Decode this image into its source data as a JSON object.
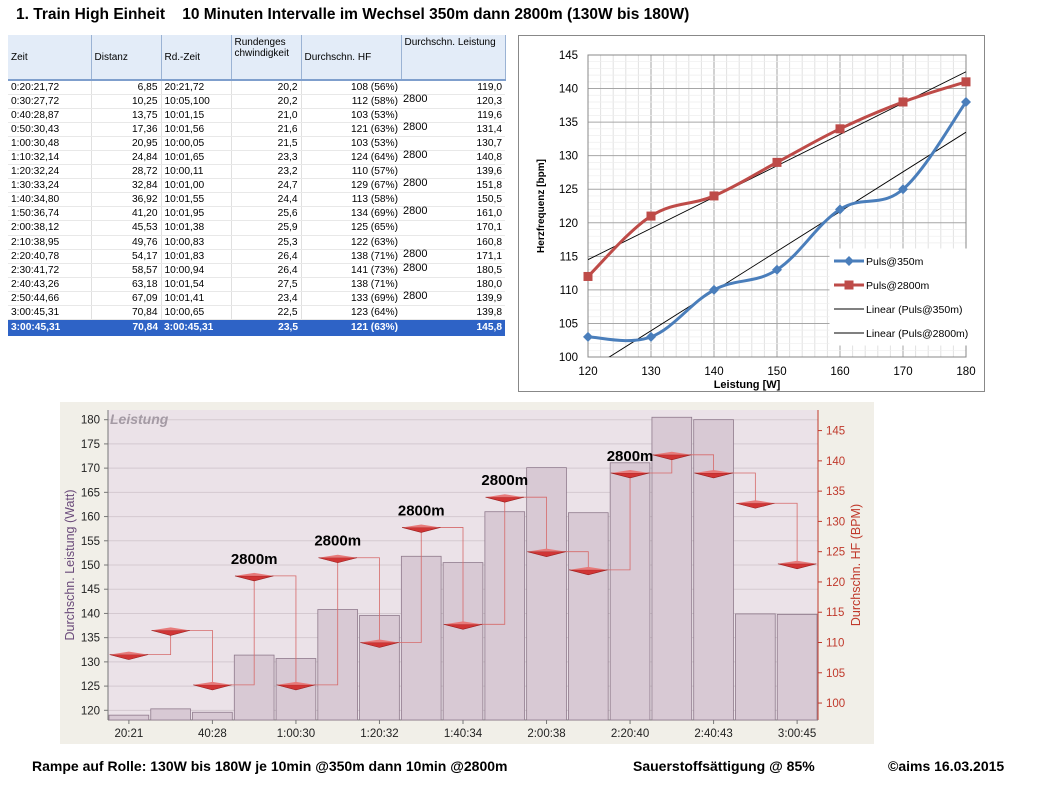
{
  "title": "1. Train High Einheit    10 Minuten Intervalle im Wechsel 350m dann 2800m (130W bis 180W)",
  "table": {
    "headers": [
      "Zeit",
      "Distanz",
      "Rd.-Zeit",
      "Rundenges chwindigkeit",
      "Durchschn. HF",
      "Durchschn. Leistung"
    ],
    "rows": [
      [
        "0:20:21,72",
        "6,85",
        "20:21,72",
        "20,2",
        "108 (56%)",
        "",
        "119,0"
      ],
      [
        "0:30:27,72",
        "10,25",
        "10:05,100",
        "20,2",
        "112 (58%)",
        "2800",
        "120,3"
      ],
      [
        "0:40:28,87",
        "13,75",
        "10:01,15",
        "21,0",
        "103 (53%)",
        "",
        "119,6"
      ],
      [
        "0:50:30,43",
        "17,36",
        "10:01,56",
        "21,6",
        "121 (63%)",
        "2800",
        "131,4"
      ],
      [
        "1:00:30,48",
        "20,95",
        "10:00,05",
        "21,5",
        "103 (53%)",
        "",
        "130,7"
      ],
      [
        "1:10:32,14",
        "24,84",
        "10:01,65",
        "23,3",
        "124 (64%)",
        "2800",
        "140,8"
      ],
      [
        "1:20:32,24",
        "28,72",
        "10:00,11",
        "23,2",
        "110 (57%)",
        "",
        "139,6"
      ],
      [
        "1:30:33,24",
        "32,84",
        "10:01,00",
        "24,7",
        "129 (67%)",
        "2800",
        "151,8"
      ],
      [
        "1:40:34,80",
        "36,92",
        "10:01,55",
        "24,4",
        "113 (58%)",
        "",
        "150,5"
      ],
      [
        "1:50:36,74",
        "41,20",
        "10:01,95",
        "25,6",
        "134 (69%)",
        "2800",
        "161,0"
      ],
      [
        "2:00:38,12",
        "45,53",
        "10:01,38",
        "25,9",
        "125 (65%)",
        "",
        "170,1"
      ],
      [
        "2:10:38,95",
        "49,76",
        "10:00,83",
        "25,3",
        "122 (63%)",
        "",
        "160,8"
      ],
      [
        "2:20:40,78",
        "54,17",
        "10:01,83",
        "26,4",
        "138 (71%)",
        "2800",
        "171,1"
      ],
      [
        "2:30:41,72",
        "58,57",
        "10:00,94",
        "26,4",
        "141 (73%)",
        "2800",
        "180,5"
      ],
      [
        "2:40:43,26",
        "63,18",
        "10:01,54",
        "27,5",
        "138 (71%)",
        "",
        "180,0"
      ],
      [
        "2:50:44,66",
        "67,09",
        "10:01,41",
        "23,4",
        "133 (69%)",
        "2800",
        "139,9"
      ],
      [
        "3:00:45,31",
        "70,84",
        "10:00,65",
        "22,5",
        "123 (64%)",
        "",
        "139,8"
      ]
    ],
    "total": [
      "3:00:45,31",
      "70,84",
      "3:00:45,31",
      "23,5",
      "121 (63%)",
      "145,8"
    ]
  },
  "footer": {
    "left": "Rampe auf Rolle: 130W bis 180W je 10min @350m dann 10min @2800m",
    "middle": "Sauerstoffsättigung @ 85%",
    "right": "©aims 16.03.2015"
  },
  "chart_data": [
    {
      "type": "line",
      "xlabel": "Leistung [W]",
      "ylabel": "Herzfrequenz [bpm]",
      "xlim": [
        120,
        180
      ],
      "ylim": [
        100,
        145
      ],
      "x_ticks": [
        120,
        130,
        140,
        150,
        160,
        170,
        180
      ],
      "y_ticks": [
        100,
        105,
        110,
        115,
        120,
        125,
        130,
        135,
        140,
        145
      ],
      "grid": true,
      "legend_position": "right",
      "series": [
        {
          "name": "Puls@350m",
          "color": "#4a7ebb",
          "marker": "diamond",
          "x": [
            120,
            130,
            140,
            150,
            160,
            170,
            180
          ],
          "y": [
            103,
            103,
            110,
            113,
            122,
            125,
            138
          ]
        },
        {
          "name": "Puls@2800m",
          "color": "#be4b48",
          "marker": "square",
          "x": [
            120,
            130,
            140,
            150,
            160,
            170,
            180
          ],
          "y": [
            112,
            121,
            124,
            129,
            134,
            138,
            141
          ]
        },
        {
          "name": "Linear (Puls@350m)",
          "color": "#000000",
          "trend": true,
          "x": [
            120,
            180
          ],
          "y": [
            98,
            133.5
          ]
        },
        {
          "name": "Linear (Puls@2800m)",
          "color": "#000000",
          "trend": true,
          "x": [
            120,
            180
          ],
          "y": [
            114.5,
            142.5
          ]
        }
      ]
    },
    {
      "type": "bar",
      "title": "Leistung",
      "ylabel": "Durchschn. Leistung (Watt)",
      "y2label": "Durchschn. HF (BPM)",
      "ylim": [
        118,
        182
      ],
      "y_ticks": [
        120,
        125,
        130,
        135,
        140,
        145,
        150,
        155,
        160,
        165,
        170,
        175,
        180
      ],
      "y2lim": [
        97.2,
        148.4
      ],
      "y2_ticks": [
        100,
        105,
        110,
        115,
        120,
        125,
        130,
        135,
        140,
        145
      ],
      "x_tick_labels": [
        "20:21",
        "40:28",
        "1:00:30",
        "1:20:32",
        "1:40:34",
        "2:00:38",
        "2:20:40",
        "2:40:43",
        "3:00:45"
      ],
      "bar_values": [
        119.0,
        120.3,
        119.6,
        131.4,
        130.7,
        140.8,
        139.6,
        151.8,
        150.5,
        161.0,
        170.1,
        160.8,
        171.1,
        180.5,
        180.0,
        139.9,
        139.8
      ],
      "hf_values": [
        108,
        112,
        103,
        121,
        103,
        124,
        110,
        129,
        113,
        134,
        125,
        122,
        138,
        141,
        138,
        133,
        123
      ],
      "annotations": [
        {
          "text": "2800m",
          "lap": 4
        },
        {
          "text": "2800m",
          "lap": 6
        },
        {
          "text": "2800m",
          "lap": 8
        },
        {
          "text": "2800m",
          "lap": 10
        },
        {
          "text": "2800m",
          "lap": 13
        }
      ]
    }
  ]
}
